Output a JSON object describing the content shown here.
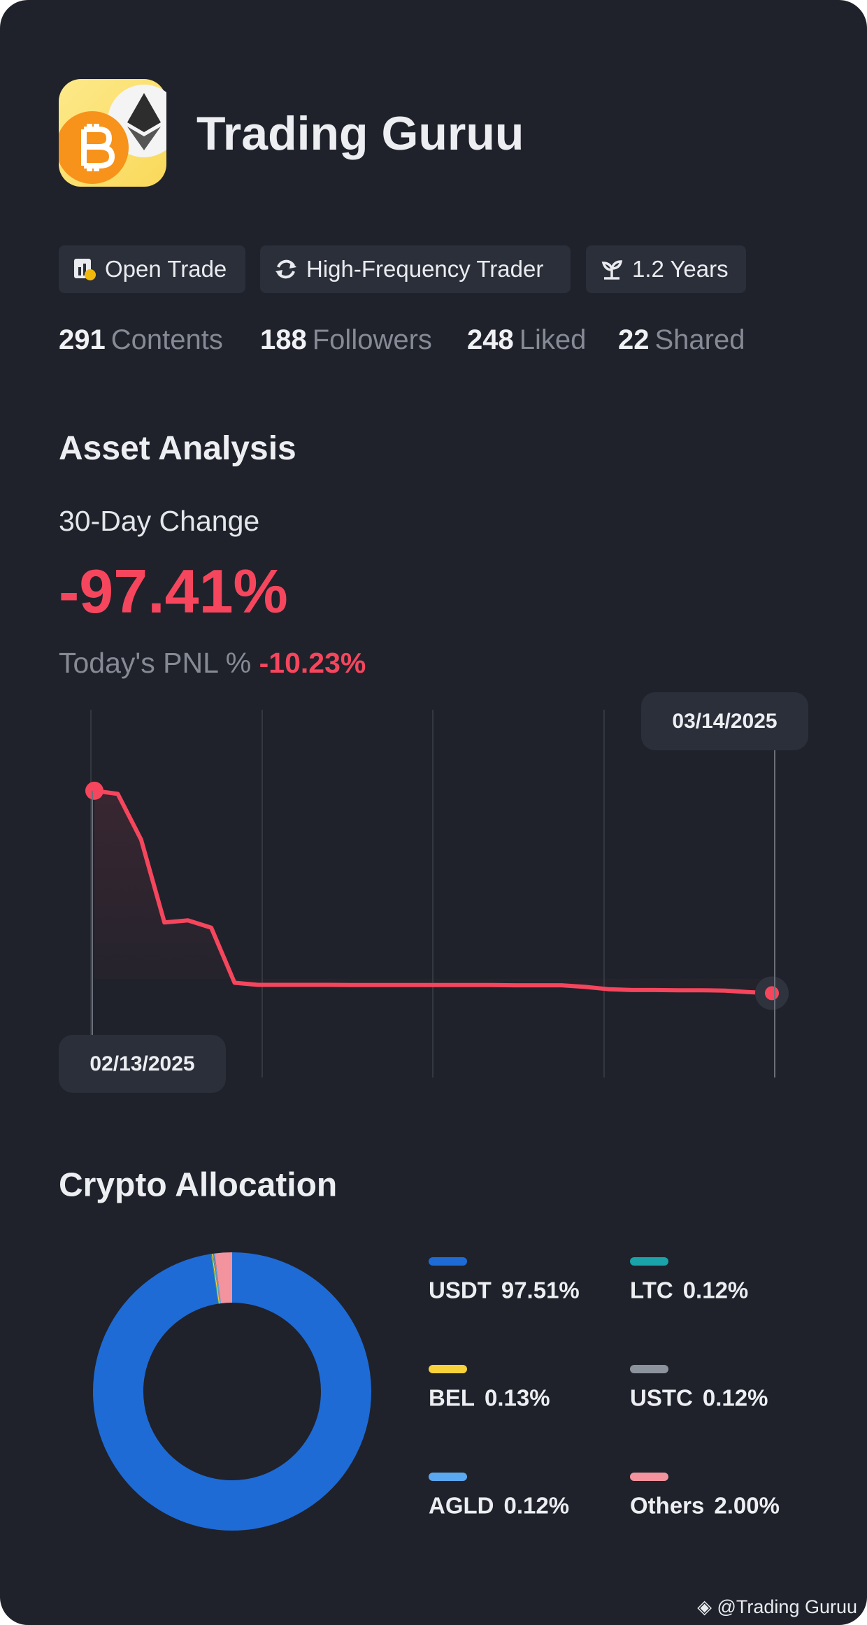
{
  "header": {
    "name": "Trading Guruu"
  },
  "tags": [
    "Open Trade",
    "High-Frequency Trader",
    "1.2 Years"
  ],
  "stats": [
    {
      "value": 291,
      "label": "Contents"
    },
    {
      "value": 188,
      "label": "Followers"
    },
    {
      "value": 248,
      "label": "Liked"
    },
    {
      "value": 22,
      "label": "Shared"
    }
  ],
  "asset_analysis": {
    "title": "Asset Analysis",
    "change_label": "30-Day Change",
    "change": "-97.41%",
    "pnl_label": "Today's PNL %",
    "pnl": "-10.23%"
  },
  "chart_data": [
    {
      "type": "line",
      "x": [
        "02/13/2025",
        null,
        null,
        null,
        null,
        null,
        null,
        null,
        null,
        null,
        null,
        null,
        null,
        null,
        null,
        null,
        null,
        null,
        null,
        null,
        null,
        null,
        null,
        null,
        null,
        null,
        null,
        null,
        null,
        "03/14/2025"
      ],
      "series": [
        {
          "color": "#f6465d",
          "values": [
            0,
            -1.5,
            -23.5,
            -63.4,
            -62.4,
            -65.9,
            -92.4,
            -93.4,
            -93.4,
            -93.4,
            -93.4,
            -93.5,
            -93.5,
            -93.5,
            -93.5,
            -93.5,
            -93.5,
            -93.5,
            -93.6,
            -93.6,
            -93.6,
            -94.4,
            -95.5,
            -95.9,
            -95.9,
            -96.0,
            -96.0,
            -96.2,
            -96.9,
            -97.41
          ]
        }
      ],
      "ylim": [
        -138,
        39
      ]
    },
    {
      "type": "pie",
      "title": "Crypto Allocation",
      "categories": [
        "USDT",
        "LTC",
        "BEL",
        "USTC",
        "AGLD",
        "Others"
      ],
      "values": [
        97.51,
        0.12,
        0.13,
        0.12,
        0.12,
        2.0
      ],
      "value_labels": [
        "97.51%",
        "0.12%",
        "0.13%",
        "0.12%",
        "0.12%",
        "2.00%"
      ],
      "colors": [
        "#1e6bd6",
        "#1aa3a8",
        "#f7d23a",
        "#8d939c",
        "#5aa8f0",
        "#f2939e"
      ]
    }
  ],
  "footer": {
    "watermark": "@Trading Guruu"
  }
}
